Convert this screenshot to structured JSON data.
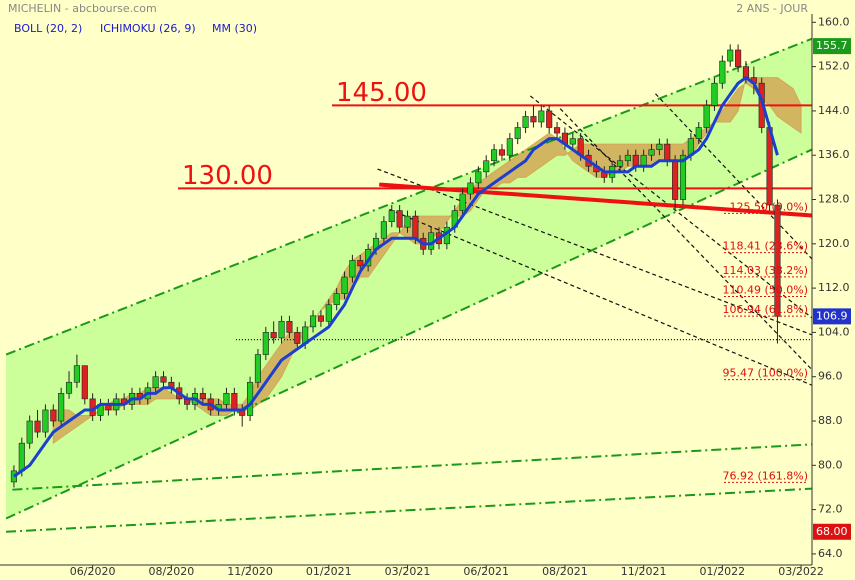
{
  "chart_data": {
    "type": "candlestick",
    "title": "MICHELIN - abcbourse.com",
    "period": "2 ANS - JOUR",
    "categories": [
      null,
      null,
      null,
      null,
      null,
      null,
      null,
      null,
      null,
      null,
      "06/2020",
      null,
      null,
      null,
      null,
      null,
      null,
      null,
      null,
      null,
      "08/2020",
      null,
      null,
      null,
      null,
      null,
      null,
      null,
      null,
      null,
      "11/2020",
      null,
      null,
      null,
      null,
      null,
      null,
      null,
      null,
      null,
      "01/2021",
      null,
      null,
      null,
      null,
      null,
      null,
      null,
      null,
      null,
      "03/2021",
      null,
      null,
      null,
      null,
      null,
      null,
      null,
      null,
      null,
      "06/2021",
      null,
      null,
      null,
      null,
      null,
      null,
      null,
      null,
      null,
      "08/2021",
      null,
      null,
      null,
      null,
      null,
      null,
      null,
      null,
      null,
      "11/2021",
      null,
      null,
      null,
      null,
      null,
      null,
      null,
      null,
      null,
      "01/2022",
      null,
      null,
      null,
      null,
      null,
      null,
      null,
      null,
      null,
      "03/2022"
    ],
    "open": [
      77,
      79,
      84,
      88,
      86,
      90,
      88,
      93,
      95,
      98,
      92,
      89,
      91,
      90,
      92,
      91,
      93,
      92,
      94,
      96,
      95,
      94,
      92,
      91,
      93,
      92,
      90,
      91,
      93,
      90,
      89,
      95,
      100,
      104,
      103,
      106,
      104,
      102,
      105,
      107,
      106,
      109,
      111,
      114,
      117,
      116,
      119,
      121,
      124,
      126,
      123,
      125,
      121,
      119,
      122,
      120,
      123,
      126,
      129,
      131,
      133,
      135,
      137,
      136,
      139,
      141,
      143,
      142,
      144,
      141,
      140,
      138,
      139,
      136,
      134,
      133,
      132,
      134,
      135,
      136,
      134,
      136,
      137,
      138,
      135,
      128,
      136,
      139,
      141,
      145,
      149,
      153,
      155,
      152,
      150,
      149,
      141,
      127,
      null,
      null,
      null
    ],
    "high": [
      80,
      85,
      89,
      90,
      91,
      91,
      94,
      97,
      100,
      98,
      93,
      92,
      92,
      93,
      93,
      94,
      94,
      95,
      97,
      97,
      96,
      95,
      93,
      94,
      94,
      93,
      92,
      94,
      94,
      91,
      96,
      101,
      105,
      106,
      107,
      107,
      105,
      106,
      108,
      108,
      110,
      112,
      115,
      118,
      118,
      120,
      122,
      125,
      127,
      127,
      126,
      126,
      122,
      123,
      123,
      124,
      127,
      130,
      132,
      134,
      136,
      138,
      138,
      140,
      142,
      144,
      145,
      145,
      145,
      142,
      141,
      140,
      140,
      137,
      135,
      134,
      135,
      136,
      137,
      137,
      137,
      138,
      139,
      139,
      136,
      137,
      140,
      142,
      146,
      150,
      154,
      156,
      156,
      153,
      152,
      150,
      142,
      128,
      null,
      null,
      null
    ],
    "low": [
      76,
      78,
      83,
      85,
      85,
      87,
      87,
      92,
      94,
      91,
      88,
      88,
      89,
      89,
      90,
      90,
      91,
      91,
      93,
      94,
      93,
      91,
      90,
      90,
      91,
      89,
      89,
      90,
      89,
      87,
      88,
      94,
      99,
      102,
      102,
      103,
      101,
      101,
      104,
      105,
      105,
      108,
      110,
      113,
      115,
      115,
      118,
      120,
      123,
      122,
      122,
      120,
      118,
      118,
      119,
      119,
      122,
      125,
      128,
      130,
      132,
      134,
      135,
      135,
      138,
      140,
      141,
      141,
      140,
      139,
      137,
      137,
      135,
      133,
      132,
      131,
      131,
      133,
      134,
      133,
      133,
      135,
      136,
      134,
      126,
      127,
      135,
      138,
      140,
      144,
      148,
      152,
      151,
      149,
      147,
      140,
      126,
      102,
      null,
      null,
      null
    ],
    "close": [
      79,
      84,
      88,
      86,
      90,
      88,
      93,
      95,
      98,
      92,
      89,
      91,
      90,
      92,
      91,
      93,
      92,
      94,
      96,
      95,
      94,
      92,
      91,
      93,
      92,
      90,
      91,
      93,
      90,
      89,
      95,
      100,
      104,
      103,
      106,
      104,
      102,
      105,
      107,
      106,
      109,
      111,
      114,
      117,
      116,
      119,
      121,
      124,
      126,
      123,
      125,
      121,
      119,
      122,
      120,
      123,
      126,
      129,
      131,
      133,
      135,
      137,
      136,
      139,
      141,
      143,
      142,
      144,
      141,
      140,
      138,
      139,
      136,
      134,
      133,
      132,
      134,
      135,
      136,
      134,
      136,
      137,
      138,
      135,
      128,
      136,
      139,
      141,
      145,
      149,
      153,
      155,
      152,
      150,
      149,
      141,
      127,
      106.9,
      null,
      null,
      null
    ],
    "up_color": "#22cc22",
    "down_color": "#dd2222",
    "bollinger": {
      "name": "BOLL (20, 2)"
    },
    "ichimoku": {
      "name": "ICHIMOKU (26, 9)",
      "color": "#d2a857",
      "span_a": [
        null,
        null,
        null,
        null,
        null,
        84,
        85,
        86,
        87,
        88,
        89,
        90,
        91,
        92,
        92,
        93,
        93,
        94,
        94,
        94,
        93,
        92,
        92,
        91,
        90,
        89,
        89,
        89,
        90,
        90,
        90,
        91,
        92,
        94,
        96,
        99,
        102,
        104,
        106,
        108,
        110,
        112,
        115,
        117,
        118,
        119,
        120,
        121,
        122,
        122,
        121,
        120,
        120,
        121,
        122,
        124,
        126,
        128,
        130,
        131,
        132,
        133,
        134,
        135,
        136,
        137,
        138,
        139,
        140,
        139,
        137,
        135,
        134,
        133,
        132,
        132,
        133,
        133,
        134,
        134,
        134,
        134,
        135,
        135,
        135,
        135,
        136,
        138,
        140,
        142,
        144,
        146,
        148,
        149,
        148,
        146,
        145,
        143,
        142,
        141,
        140
      ],
      "span_b": [
        null,
        null,
        null,
        null,
        null,
        90,
        90,
        90,
        89,
        89,
        89,
        90,
        90,
        90,
        91,
        91,
        91,
        91,
        92,
        92,
        92,
        92,
        92,
        92,
        92,
        92,
        92,
        91,
        91,
        91,
        93,
        96,
        98,
        100,
        102,
        104,
        104,
        104,
        106,
        108,
        109,
        110,
        110,
        112,
        114,
        114,
        116,
        118,
        120,
        122,
        124,
        125,
        125,
        125,
        125,
        125,
        125,
        125,
        126,
        128,
        130,
        130,
        131,
        131,
        132,
        132,
        133,
        134,
        135,
        136,
        136,
        137,
        138,
        138,
        138,
        138,
        138,
        138,
        138,
        138,
        138,
        138,
        138,
        138,
        138,
        138,
        139,
        140,
        141,
        142,
        142,
        142,
        144,
        150,
        150,
        150,
        150,
        150,
        149,
        148,
        145
      ]
    },
    "moving_average": {
      "name": "MM (30)",
      "color": "#1c3fd0",
      "values": [
        78,
        79,
        80,
        82,
        84,
        86,
        87,
        88,
        89,
        90,
        90,
        91,
        91,
        91,
        91,
        92,
        92,
        93,
        93,
        94,
        94,
        93,
        92,
        92,
        91,
        91,
        90,
        90,
        90,
        90,
        91,
        93,
        95,
        97,
        99,
        100,
        101,
        102,
        103,
        104,
        105,
        107,
        109,
        112,
        115,
        117,
        119,
        120,
        121,
        121,
        121,
        121,
        120,
        120,
        121,
        122,
        123,
        125,
        127,
        129,
        130,
        131,
        132,
        133,
        134,
        135,
        137,
        138,
        139,
        139,
        138,
        137,
        136,
        135,
        134,
        133,
        133,
        133,
        133,
        134,
        134,
        134,
        135,
        135,
        135,
        135,
        136,
        137,
        139,
        142,
        145,
        147,
        149,
        150,
        149,
        146,
        141,
        136,
        null,
        null,
        null
      ]
    },
    "levels": [
      {
        "value": 145,
        "label": "145.00",
        "color": "#ee1111"
      },
      {
        "value": 130,
        "label": "130.00",
        "color": "#ee1111"
      }
    ],
    "fibonacci": [
      {
        "value": 125.5,
        "label": "125.50 (0.0%)"
      },
      {
        "value": 118.41,
        "label": "118.41 (23.6%)"
      },
      {
        "value": 114.03,
        "label": "114.03 (38.2%)"
      },
      {
        "value": 110.49,
        "label": "110.49 (50.0%)"
      },
      {
        "value": 106.94,
        "label": "106.94 (61.8%)"
      },
      {
        "value": 95.47,
        "label": "95.47 (100.0%)"
      },
      {
        "value": 76.92,
        "label": "76.92 (161.8%)"
      }
    ],
    "price_tags": [
      {
        "value": 155.7,
        "label": "155.7",
        "color": "#1a9a1a"
      },
      {
        "value": 106.9,
        "label": "106.9",
        "color": "#2233cc"
      },
      {
        "value": 68,
        "label": "68.00",
        "color": "#dd1111"
      }
    ],
    "trendlines": [
      {
        "from": [
          -1,
          100
        ],
        "to": [
          101.5,
          157.1
        ],
        "color": "#1a9a1a",
        "style": "dashdot"
      },
      {
        "from": [
          -1,
          70.4
        ],
        "to": [
          101.5,
          137.1
        ],
        "color": "#1a9a1a",
        "style": "dashdot"
      },
      {
        "from": [
          -0.2,
          75.6
        ],
        "to": [
          101.5,
          83.8
        ],
        "color": "#1a9a1a",
        "style": "dashdot"
      },
      {
        "from": [
          -1,
          68
        ],
        "to": [
          101.5,
          75.8
        ],
        "color": "#1a9a1a",
        "style": "dashdot"
      },
      {
        "from": [
          46.2,
          133.5
        ],
        "to": [
          101.5,
          103.5
        ],
        "color": "#111111",
        "style": "dash"
      },
      {
        "from": [
          47.7,
          126.2
        ],
        "to": [
          101.5,
          94.4
        ],
        "color": "#111111",
        "style": "dash"
      },
      {
        "from": [
          65.6,
          146.7
        ],
        "to": [
          101.5,
          106.5
        ],
        "color": "#111111",
        "style": "dash"
      },
      {
        "from": [
          69.4,
          144.4
        ],
        "to": [
          101.5,
          97.1
        ],
        "color": "#111111",
        "style": "dash"
      },
      {
        "from": [
          81.5,
          147.1
        ],
        "to": [
          101.5,
          117.1
        ],
        "color": "#111111",
        "style": "dash"
      },
      {
        "from": [
          28.2,
          102.7
        ],
        "to": [
          101.5,
          102.7
        ],
        "color": "#111111",
        "style": "dot"
      },
      {
        "from": [
          46.4,
          130.7
        ],
        "to": [
          101.5,
          125.1
        ],
        "color": "#ee1111",
        "style": "thick"
      }
    ],
    "ylim": [
      62,
      161.5
    ],
    "yticks": [
      {
        "value": 64,
        "label": "64.0"
      },
      {
        "value": 72,
        "label": "72.0"
      },
      {
        "value": 80,
        "label": "80.0"
      },
      {
        "value": 88,
        "label": "88.0"
      },
      {
        "value": 96,
        "label": "96.0"
      },
      {
        "value": 104,
        "label": "104.0"
      },
      {
        "value": 112,
        "label": "112.0"
      },
      {
        "value": 120,
        "label": "120.0"
      },
      {
        "value": 128,
        "label": "128.0"
      },
      {
        "value": 136,
        "label": "136.0"
      },
      {
        "value": 144,
        "label": "144.0"
      },
      {
        "value": 152,
        "label": "152.0"
      },
      {
        "value": 160,
        "label": "160.0"
      }
    ]
  }
}
